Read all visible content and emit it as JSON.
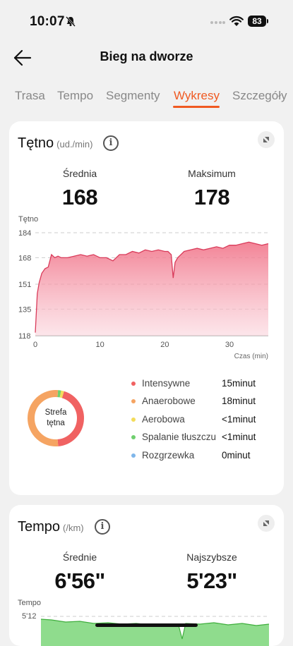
{
  "status_bar": {
    "time": "10:07",
    "battery": "83"
  },
  "header": {
    "title": "Bieg na dworze"
  },
  "tabs": [
    {
      "label": "Trasa"
    },
    {
      "label": "Tempo"
    },
    {
      "label": "Segmenty"
    },
    {
      "label": "Wykresy",
      "active": true
    },
    {
      "label": "Szczegóły"
    }
  ],
  "heart_rate": {
    "title": "Tętno",
    "unit": "(ud./min)",
    "avg_label": "Średnia",
    "avg_value": "168",
    "max_label": "Maksimum",
    "max_value": "178",
    "chart_data": {
      "type": "area",
      "ylabel": "Tętno",
      "xlabel": "Czas (min)",
      "yticks": [
        "184",
        "168",
        "151",
        "135",
        "118"
      ],
      "xticks": [
        "0",
        "10",
        "20",
        "30"
      ],
      "ylim": [
        118,
        184
      ],
      "xlim": [
        0,
        36
      ],
      "color": "#e8506a",
      "x": [
        0,
        0.3,
        0.6,
        1,
        1.5,
        2,
        2.5,
        3,
        3.5,
        4,
        5,
        6,
        7,
        8,
        9,
        10,
        11,
        12,
        13,
        14,
        15,
        16,
        17,
        18,
        19,
        20,
        20.5,
        21,
        21.3,
        21.6,
        22,
        23,
        24,
        25,
        26,
        27,
        28,
        29,
        30,
        31,
        32,
        33,
        34,
        35,
        36
      ],
      "y": [
        120,
        145,
        152,
        158,
        161,
        162,
        170,
        168,
        169,
        168,
        168,
        169,
        170,
        169,
        170,
        168,
        168,
        166,
        170,
        170,
        172,
        171,
        173,
        172,
        173,
        172,
        172,
        170,
        155,
        165,
        168,
        172,
        173,
        174,
        173,
        174,
        175,
        174,
        176,
        176,
        177,
        178,
        177,
        176,
        177
      ]
    },
    "zones_center": [
      "Strefa",
      "tętna"
    ],
    "zones": [
      {
        "name": "Intensywne",
        "time": "15minut",
        "color": "#f06262",
        "value": 15
      },
      {
        "name": "Anaerobowe",
        "time": "18minut",
        "color": "#f5a462",
        "value": 18
      },
      {
        "name": "Aerobowa",
        "time": "<1minut",
        "color": "#f3dc5a",
        "value": 0.6
      },
      {
        "name": "Spalanie tłuszczu",
        "time": "<1minut",
        "color": "#6fcf6e",
        "value": 0.6
      },
      {
        "name": "Rozgrzewka",
        "time": "0minut",
        "color": "#7fb6ea",
        "value": 0
      }
    ]
  },
  "pace": {
    "title": "Tempo",
    "unit": "(/km)",
    "avg_label": "Średnie",
    "avg_value": "6'56\"",
    "best_label": "Najszybsze",
    "best_value": "5'23\"",
    "chart_data": {
      "type": "area",
      "ylabel": "Tempo",
      "yticks": [
        "5'12"
      ],
      "color": "#6fcf6e"
    }
  }
}
